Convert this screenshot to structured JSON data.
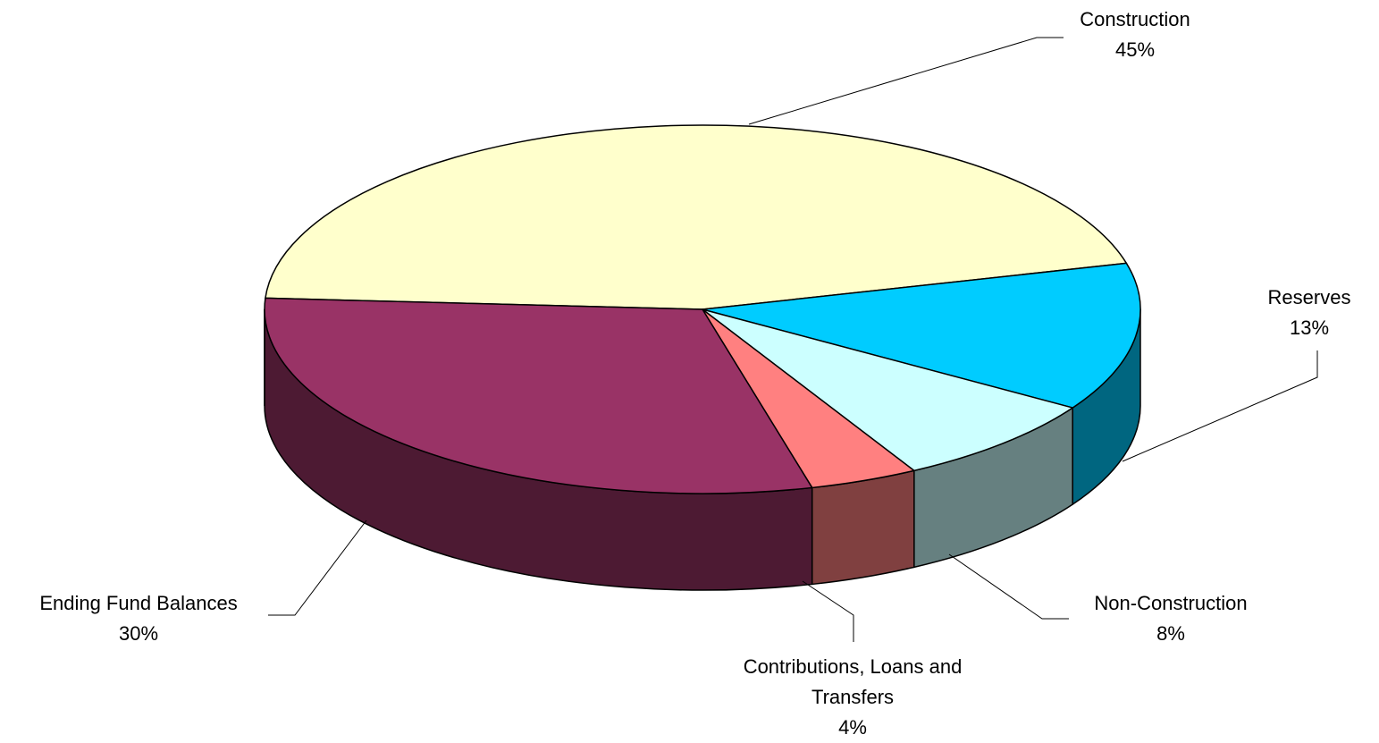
{
  "chart_data": {
    "type": "pie",
    "style": "3d",
    "slices": [
      {
        "name": "Construction",
        "pct_label": "45%",
        "value": 45,
        "top_color": "#FFFFCC",
        "side_color": "#808066"
      },
      {
        "name": "Reserves",
        "pct_label": "13%",
        "value": 13,
        "top_color": "#00CCFF",
        "side_color": "#006680"
      },
      {
        "name": "Non-Construction",
        "pct_label": "8%",
        "value": 8,
        "top_color": "#CCFFFF",
        "side_color": "#668080"
      },
      {
        "name": "Contributions, Loans and Transfers",
        "name_lines": [
          "Contributions, Loans and",
          "Transfers"
        ],
        "pct_label": "4%",
        "value": 4,
        "top_color": "#FF8080",
        "side_color": "#804040"
      },
      {
        "name": "Ending Fund Balances",
        "pct_label": "30%",
        "value": 30,
        "top_color": "#993366",
        "side_color": "#4D1A33"
      }
    ]
  }
}
